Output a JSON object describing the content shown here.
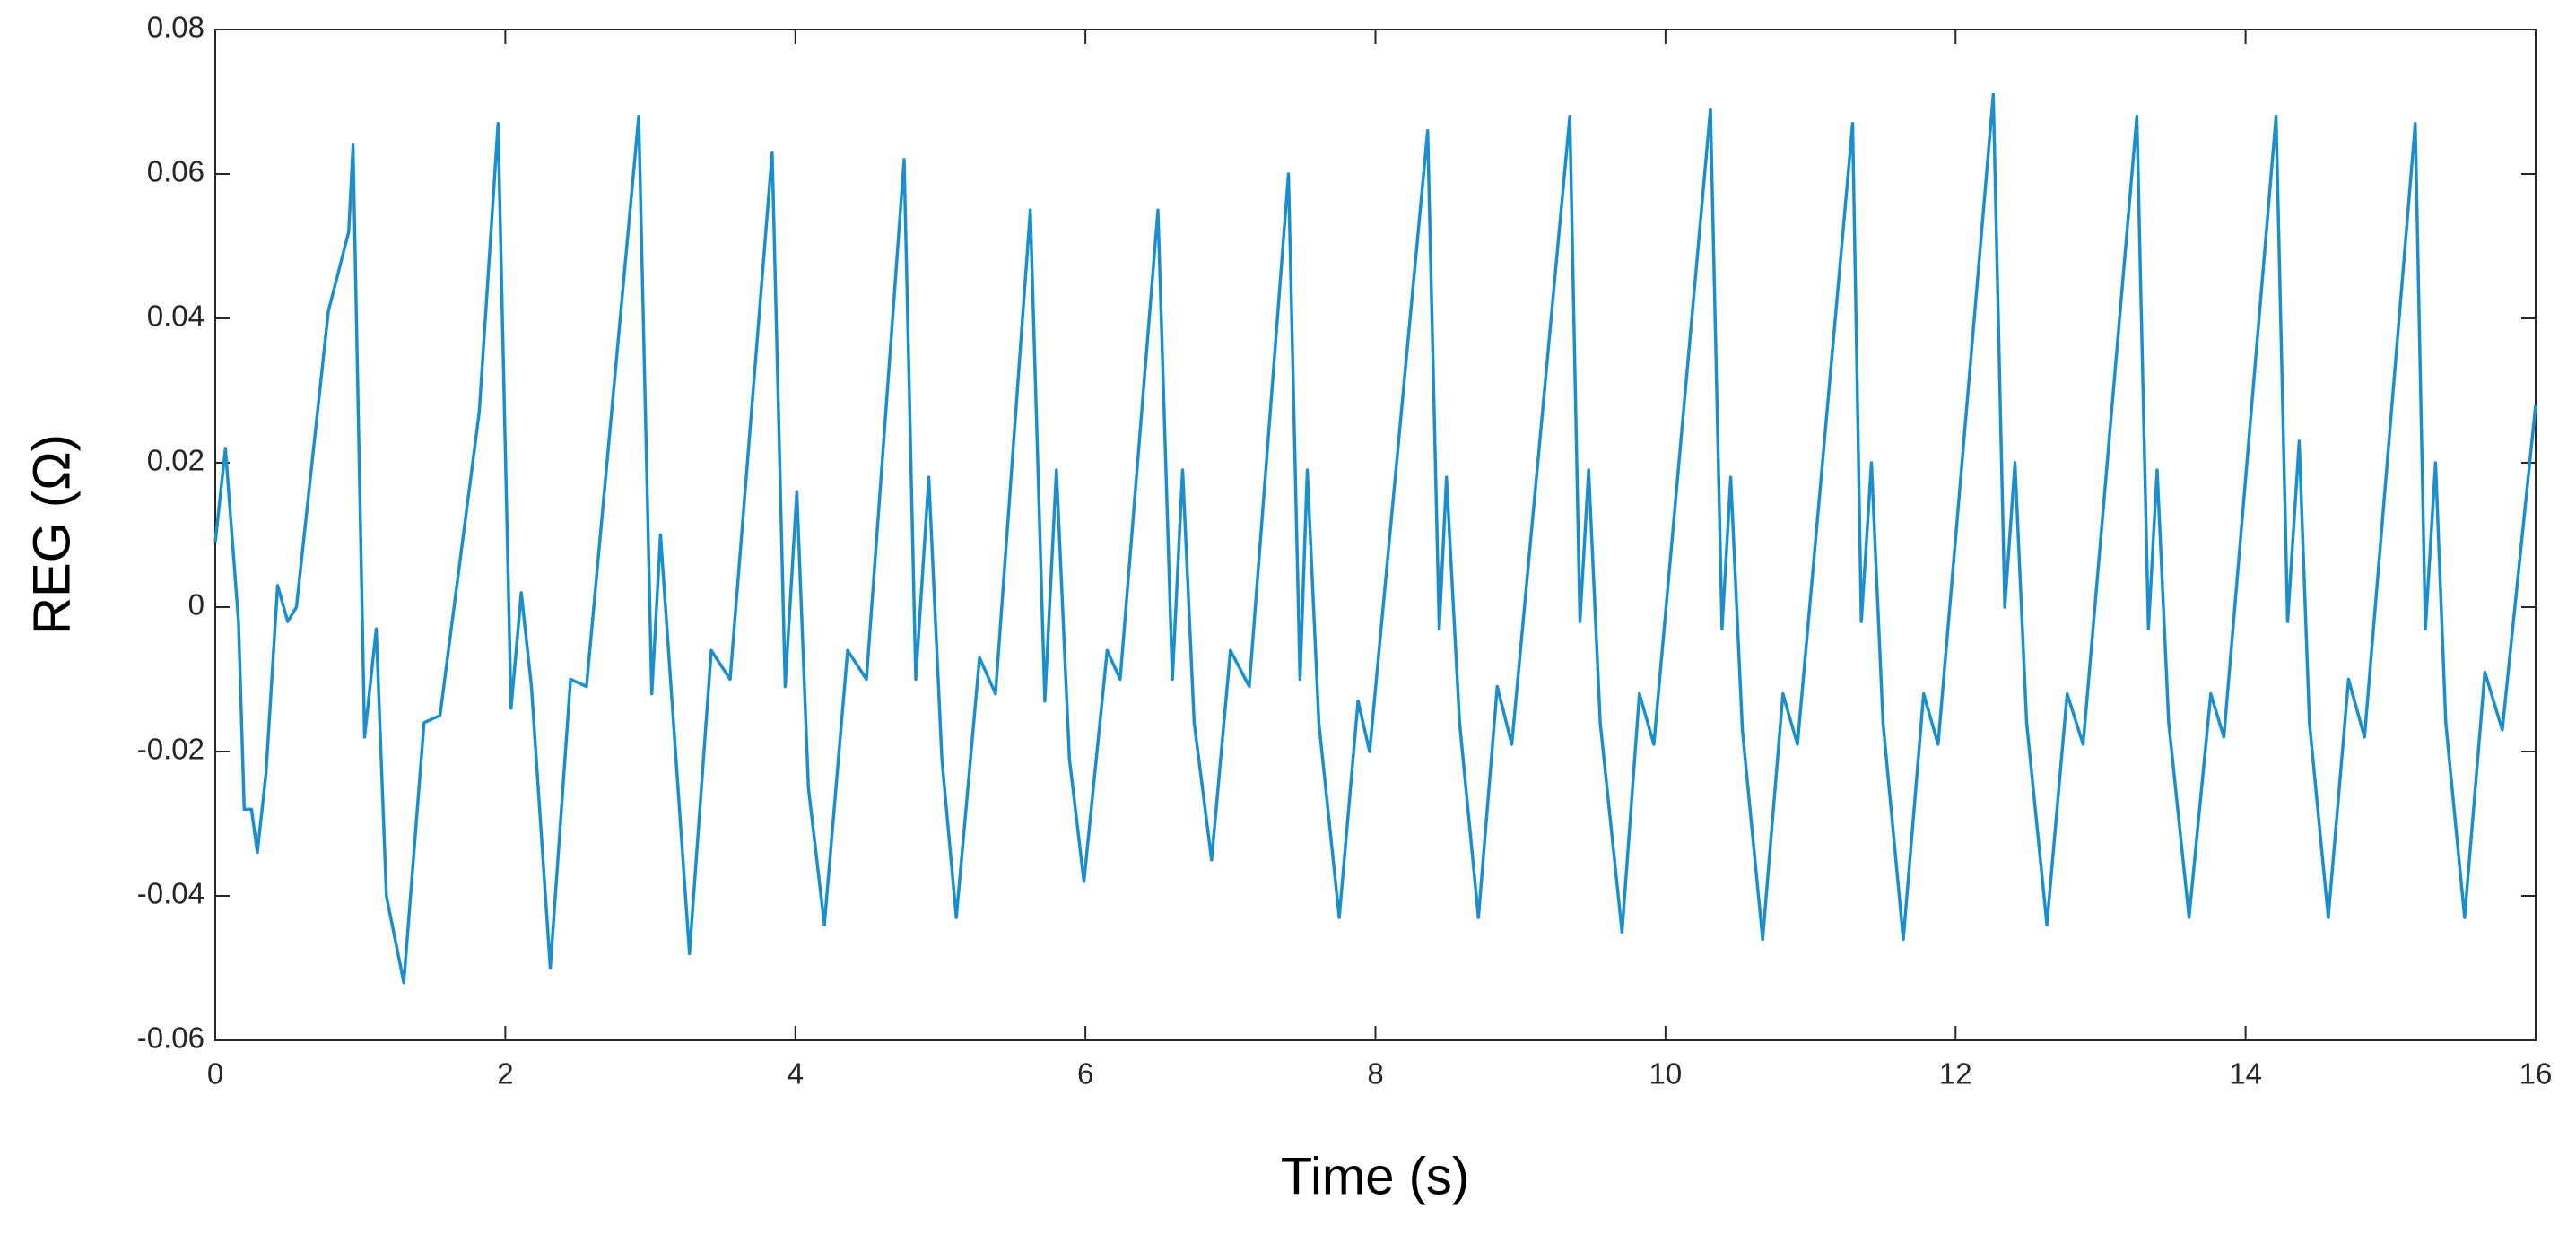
{
  "chart_data": {
    "type": "line",
    "xlabel": "Time (s)",
    "ylabel": "REG (Ω)",
    "x": [
      0,
      0.07,
      0.16,
      0.2,
      0.25,
      0.29,
      0.35,
      0.43,
      0.5,
      0.56,
      0.78,
      0.92,
      0.95,
      1.03,
      1.11,
      1.18,
      1.3,
      1.44,
      1.55,
      1.82,
      1.95,
      2.04,
      2.11,
      2.18,
      2.31,
      2.45,
      2.56,
      2.92,
      3.01,
      3.07,
      3.16,
      3.27,
      3.42,
      3.55,
      3.84,
      3.93,
      4.01,
      4.09,
      4.2,
      4.36,
      4.49,
      4.75,
      4.83,
      4.92,
      5.01,
      5.11,
      5.27,
      5.38,
      5.62,
      5.72,
      5.8,
      5.89,
      5.99,
      6.15,
      6.24,
      6.5,
      6.6,
      6.67,
      6.75,
      6.87,
      7.0,
      7.13,
      7.4,
      7.48,
      7.53,
      7.61,
      7.75,
      7.88,
      7.96,
      8.36,
      8.44,
      8.49,
      8.58,
      8.71,
      8.84,
      8.94,
      9.34,
      9.41,
      9.47,
      9.55,
      9.7,
      9.82,
      9.92,
      10.31,
      10.39,
      10.45,
      10.53,
      10.67,
      10.81,
      10.91,
      11.29,
      11.35,
      11.42,
      11.5,
      11.64,
      11.78,
      11.88,
      12.26,
      12.34,
      12.41,
      12.49,
      12.63,
      12.77,
      12.88,
      13.25,
      13.33,
      13.39,
      13.47,
      13.61,
      13.76,
      13.85,
      14.21,
      14.29,
      14.37,
      14.44,
      14.57,
      14.71,
      14.82,
      15.17,
      15.24,
      15.31,
      15.38,
      15.51,
      15.65,
      15.77,
      16
    ],
    "series": [
      {
        "color": "#1a8fd0",
        "values": [
          0.009,
          0.022,
          -0.002,
          -0.028,
          -0.028,
          -0.034,
          -0.023,
          0.003,
          -0.002,
          0,
          0.041,
          0.052,
          0.064,
          -0.018,
          -0.003,
          -0.04,
          -0.052,
          -0.016,
          -0.015,
          0.027,
          0.067,
          -0.014,
          0.002,
          -0.011,
          -0.05,
          -0.01,
          -0.011,
          0.068,
          -0.012,
          0.01,
          -0.016,
          -0.048,
          -0.006,
          -0.01,
          0.063,
          -0.011,
          0.016,
          -0.025,
          -0.044,
          -0.006,
          -0.01,
          0.062,
          -0.01,
          0.018,
          -0.021,
          -0.043,
          -0.007,
          -0.012,
          0.055,
          -0.013,
          0.019,
          -0.021,
          -0.038,
          -0.006,
          -0.01,
          0.055,
          -0.01,
          0.019,
          -0.016,
          -0.035,
          -0.006,
          -0.011,
          0.06,
          -0.01,
          0.019,
          -0.016,
          -0.043,
          -0.013,
          -0.02,
          0.066,
          -0.003,
          0.018,
          -0.016,
          -0.043,
          -0.011,
          -0.019,
          0.068,
          -0.002,
          0.019,
          -0.016,
          -0.045,
          -0.012,
          -0.019,
          0.069,
          -0.003,
          0.018,
          -0.017,
          -0.046,
          -0.012,
          -0.019,
          0.067,
          -0.002,
          0.02,
          -0.016,
          -0.046,
          -0.012,
          -0.019,
          0.071,
          0,
          0.02,
          -0.016,
          -0.044,
          -0.012,
          -0.019,
          0.068,
          -0.003,
          0.019,
          -0.016,
          -0.043,
          -0.012,
          -0.018,
          0.068,
          -0.002,
          0.023,
          -0.016,
          -0.043,
          -0.01,
          -0.018,
          0.067,
          -0.003,
          0.02,
          -0.016,
          -0.043,
          -0.009,
          -0.017,
          0.028
        ]
      }
    ],
    "xlim": [
      0,
      16
    ],
    "xticks": [
      0,
      2,
      4,
      6,
      8,
      10,
      12,
      14,
      16
    ],
    "ylim": [
      -0.06,
      0.08
    ],
    "yticks": [
      -0.06,
      -0.04,
      -0.02,
      0,
      0.02,
      0.04,
      0.06,
      0.08
    ],
    "grid": false
  }
}
